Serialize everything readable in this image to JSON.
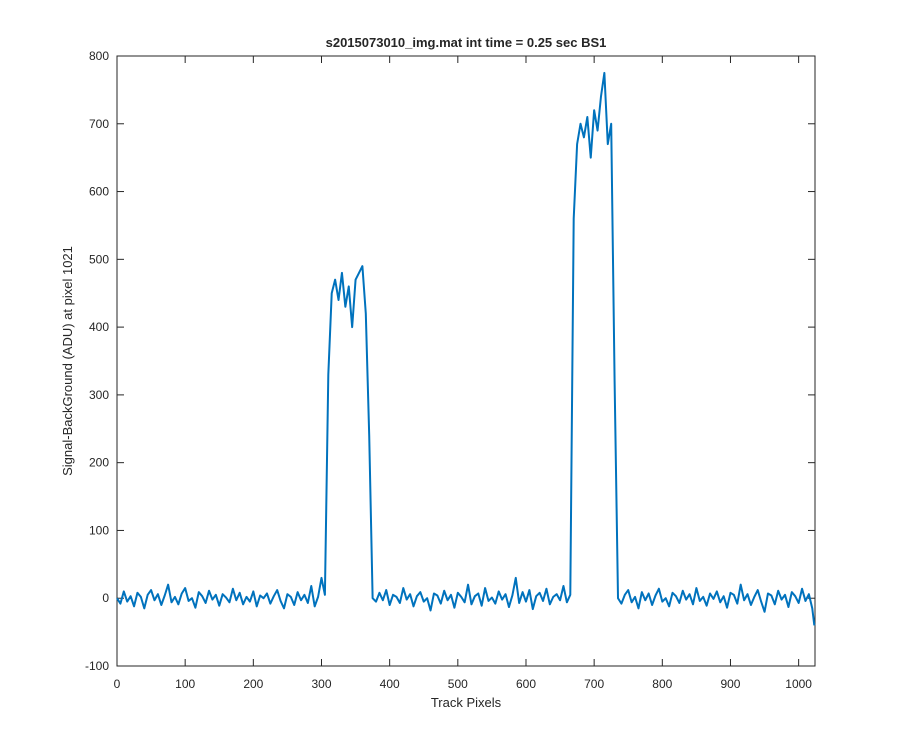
{
  "chart_data": {
    "type": "line",
    "title": "s2015073010_img.mat int time = 0.25 sec   BS1",
    "x_label": "Track Pixels",
    "y_label": "Signal-BackGround (ADU) at pixel 1021",
    "xlim": [
      0,
      1024
    ],
    "ylim": [
      -100,
      800
    ],
    "xticks": [
      0,
      100,
      200,
      300,
      400,
      500,
      600,
      700,
      800,
      900,
      1000
    ],
    "yticks": [
      -100,
      0,
      100,
      200,
      300,
      400,
      500,
      600,
      700,
      800
    ],
    "x": [
      0,
      5,
      10,
      15,
      20,
      25,
      30,
      35,
      40,
      45,
      50,
      55,
      60,
      65,
      70,
      75,
      80,
      85,
      90,
      95,
      100,
      105,
      110,
      115,
      120,
      125,
      130,
      135,
      140,
      145,
      150,
      155,
      160,
      165,
      170,
      175,
      180,
      185,
      190,
      195,
      200,
      205,
      210,
      215,
      220,
      225,
      230,
      235,
      240,
      245,
      250,
      255,
      260,
      265,
      270,
      275,
      280,
      285,
      290,
      295,
      300,
      305,
      310,
      315,
      320,
      325,
      330,
      335,
      340,
      345,
      350,
      355,
      360,
      365,
      370,
      375,
      380,
      385,
      390,
      395,
      400,
      405,
      410,
      415,
      420,
      425,
      430,
      435,
      440,
      445,
      450,
      455,
      460,
      465,
      470,
      475,
      480,
      485,
      490,
      495,
      500,
      505,
      510,
      515,
      520,
      525,
      530,
      535,
      540,
      545,
      550,
      555,
      560,
      565,
      570,
      575,
      580,
      585,
      590,
      595,
      600,
      605,
      610,
      615,
      620,
      625,
      630,
      635,
      640,
      645,
      650,
      655,
      660,
      665,
      670,
      675,
      680,
      685,
      690,
      695,
      700,
      705,
      710,
      715,
      720,
      725,
      730,
      735,
      740,
      745,
      750,
      755,
      760,
      765,
      770,
      775,
      780,
      785,
      790,
      795,
      800,
      805,
      810,
      815,
      820,
      825,
      830,
      835,
      840,
      845,
      850,
      855,
      860,
      865,
      870,
      875,
      880,
      885,
      890,
      895,
      900,
      905,
      910,
      915,
      920,
      925,
      930,
      935,
      940,
      945,
      950,
      955,
      960,
      965,
      970,
      975,
      980,
      985,
      990,
      995,
      1000,
      1005,
      1010,
      1015,
      1020,
      1023
    ],
    "series": [
      {
        "color": "#0072bd",
        "values": [
          0,
          -8,
          10,
          -5,
          3,
          -12,
          8,
          2,
          -15,
          5,
          12,
          -3,
          6,
          -10,
          4,
          20,
          -6,
          2,
          -9,
          7,
          15,
          -4,
          0,
          -14,
          9,
          3,
          -7,
          11,
          -2,
          5,
          -11,
          6,
          1,
          -6,
          14,
          -3,
          8,
          -9,
          2,
          -5,
          10,
          -12,
          4,
          0,
          7,
          -8,
          3,
          12,
          -4,
          -15,
          6,
          2,
          -10,
          9,
          -3,
          5,
          -7,
          18,
          -12,
          2,
          30,
          5,
          330,
          450,
          470,
          440,
          480,
          430,
          460,
          400,
          470,
          480,
          490,
          420,
          240,
          0,
          -5,
          8,
          -3,
          12,
          -10,
          5,
          2,
          -7,
          15,
          -2,
          6,
          -12,
          3,
          9,
          -5,
          0,
          -18,
          7,
          4,
          -8,
          11,
          -3,
          5,
          -14,
          8,
          2,
          -6,
          20,
          -9,
          3,
          7,
          -11,
          15,
          -4,
          1,
          -8,
          10,
          -2,
          6,
          -13,
          4,
          30,
          -7,
          9,
          -5,
          12,
          -16,
          3,
          8,
          -4,
          14,
          -9,
          2,
          6,
          -3,
          18,
          -6,
          5,
          560,
          670,
          700,
          680,
          710,
          650,
          720,
          690,
          740,
          775,
          670,
          700,
          320,
          0,
          -8,
          5,
          12,
          -6,
          2,
          -15,
          9,
          -3,
          7,
          -10,
          4,
          14,
          -5,
          0,
          -12,
          8,
          3,
          -7,
          11,
          -2,
          6,
          -9,
          15,
          -4,
          2,
          -11,
          7,
          -1,
          10,
          -6,
          3,
          -14,
          8,
          5,
          -8,
          20,
          -3,
          6,
          -10,
          2,
          12,
          -5,
          -20,
          7,
          4,
          -9,
          11,
          -2,
          5,
          -13,
          9,
          3,
          -7,
          14,
          -4,
          6,
          -15,
          -40
        ]
      }
    ]
  }
}
